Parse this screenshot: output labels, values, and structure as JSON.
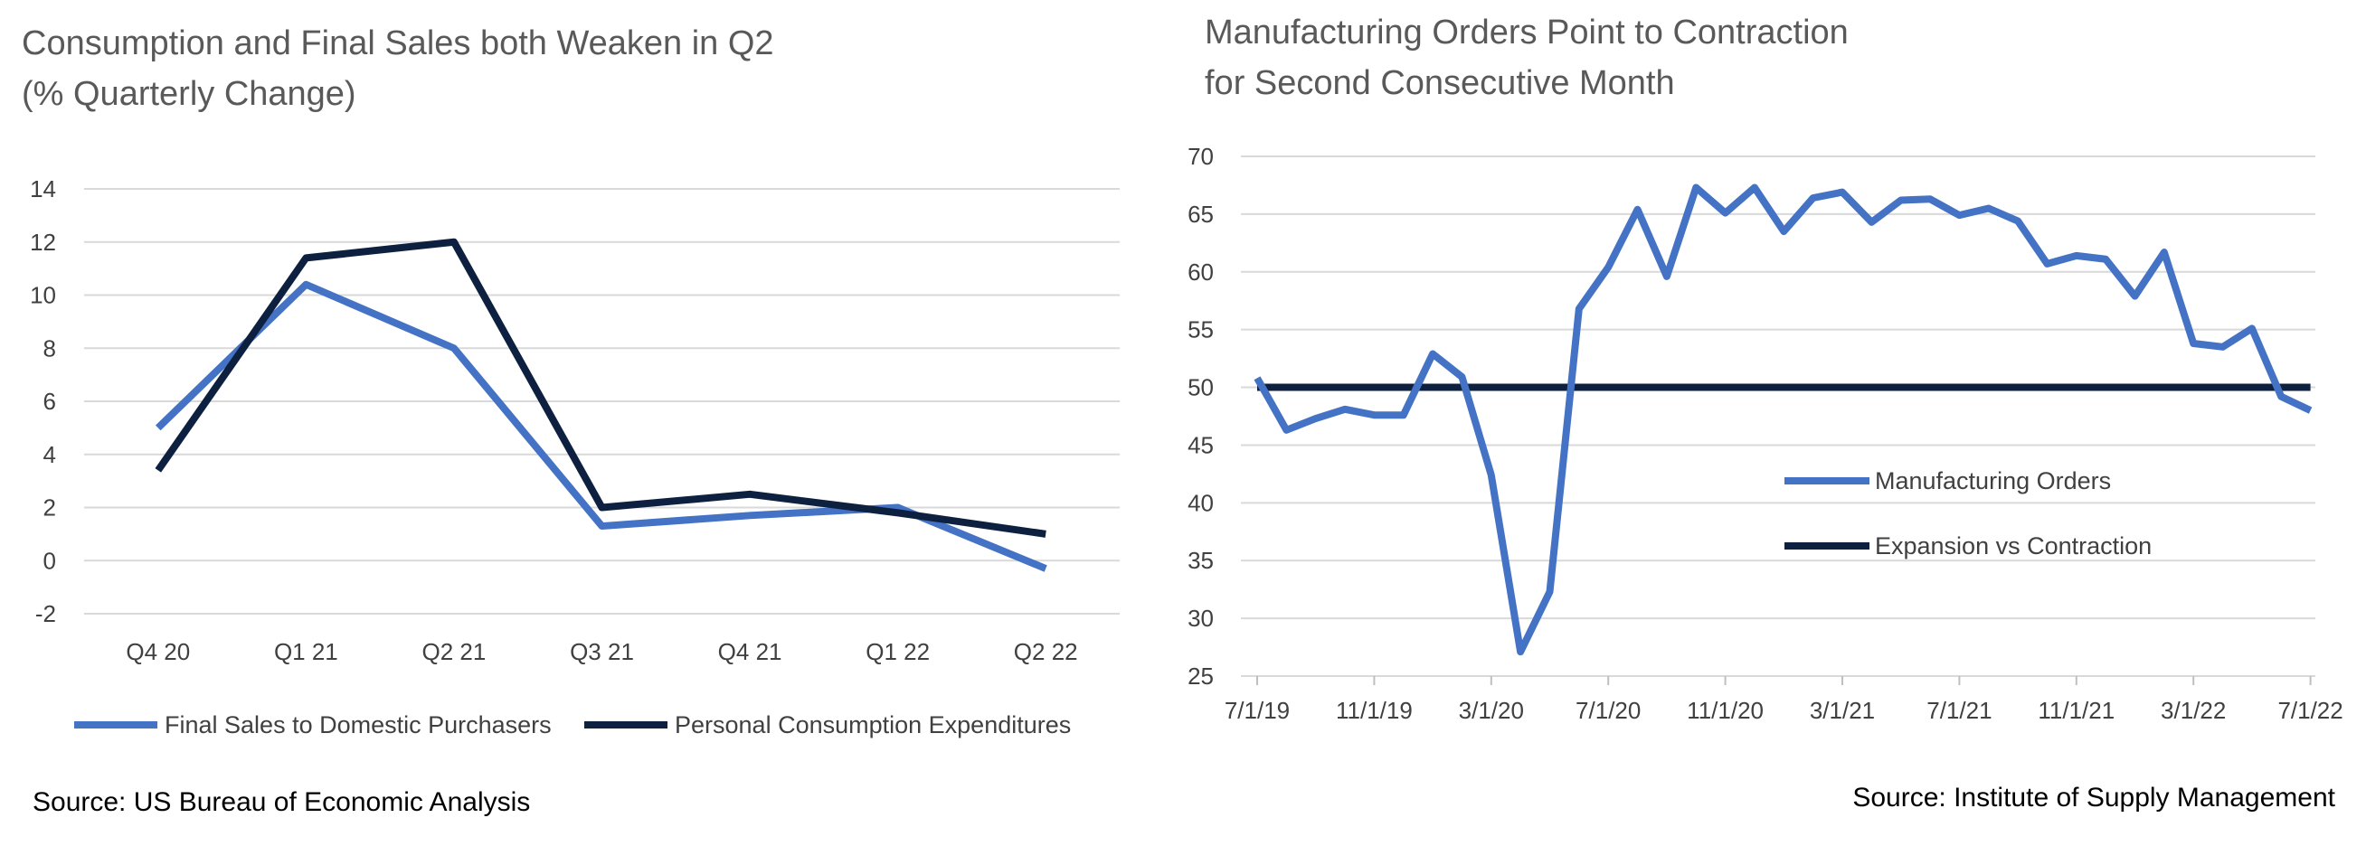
{
  "chart_data": [
    {
      "type": "line",
      "title": [
        "Consumption and Final Sales both Weaken in Q2",
        "(% Quarterly Change)"
      ],
      "categories": [
        "Q4 20",
        "Q1 21",
        "Q2 21",
        "Q3 21",
        "Q4 21",
        "Q1 22",
        "Q2 22"
      ],
      "ylim": [
        -2,
        14
      ],
      "yticks": [
        -2,
        0,
        2,
        4,
        6,
        8,
        10,
        12,
        14
      ],
      "grid": true,
      "legend": "bottom",
      "series": [
        {
          "name": "Final Sales to Domestic Purchasers",
          "color": "#4472C4",
          "values": [
            5.0,
            10.4,
            8.0,
            1.3,
            1.7,
            2.0,
            -0.3
          ]
        },
        {
          "name": "Personal Consumption Expenditures",
          "color": "#0D203F",
          "values": [
            3.4,
            11.4,
            12.0,
            2.0,
            2.5,
            1.8,
            1.0
          ]
        }
      ],
      "source": "Source: US Bureau of Economic Analysis"
    },
    {
      "type": "line",
      "title": [
        "Manufacturing Orders Point to Contraction",
        "for Second Consecutive Month"
      ],
      "x_start": "2019-07",
      "xtick_labels": [
        "7/1/19",
        "11/1/19",
        "3/1/20",
        "7/1/20",
        "11/1/20",
        "3/1/21",
        "7/1/21",
        "11/1/21",
        "3/1/22",
        "7/1/22"
      ],
      "ylim": [
        25,
        70
      ],
      "yticks": [
        25,
        30,
        35,
        40,
        45,
        50,
        55,
        60,
        65,
        70
      ],
      "grid": true,
      "legend": "center-right",
      "series": [
        {
          "name": "Manufacturing Orders",
          "color": "#4472C4",
          "x": [
            "2019-07",
            "2019-08",
            "2019-09",
            "2019-10",
            "2019-11",
            "2019-12",
            "2020-01",
            "2020-02",
            "2020-03",
            "2020-04",
            "2020-05",
            "2020-06",
            "2020-07",
            "2020-08",
            "2020-09",
            "2020-10",
            "2020-11",
            "2020-12",
            "2021-01",
            "2021-02",
            "2021-03",
            "2021-04",
            "2021-05",
            "2021-06",
            "2021-07",
            "2021-08",
            "2021-09",
            "2021-10",
            "2021-11",
            "2021-12",
            "2022-01",
            "2022-02",
            "2022-03",
            "2022-04",
            "2022-05",
            "2022-06",
            "2022-07"
          ],
          "values": [
            50.8,
            46.3,
            47.3,
            48.1,
            47.6,
            47.6,
            52.9,
            50.9,
            42.4,
            27.1,
            32.3,
            56.8,
            60.4,
            65.4,
            59.6,
            67.3,
            65.1,
            67.3,
            63.5,
            66.4,
            66.9,
            64.3,
            66.2,
            66.3,
            64.9,
            65.5,
            64.4,
            60.7,
            61.4,
            61.1,
            57.9,
            61.7,
            53.8,
            53.5,
            55.1,
            49.2,
            48.0
          ]
        },
        {
          "name": "Expansion vs Contraction",
          "color": "#0D203F",
          "constant": 50
        }
      ],
      "source": "Source: Institute of Supply Management"
    }
  ]
}
